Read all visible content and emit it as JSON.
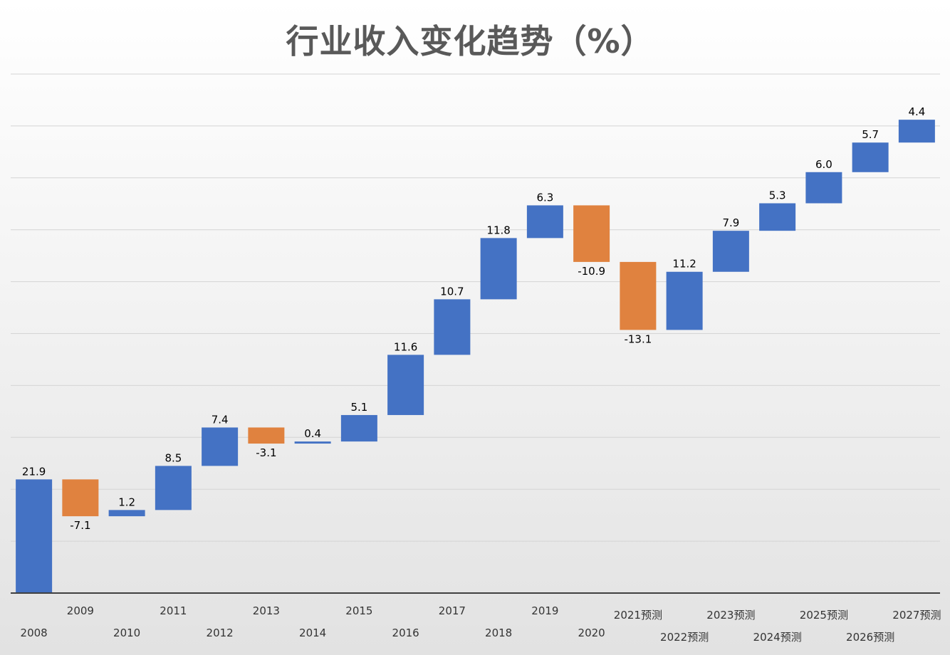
{
  "chart_data": {
    "type": "bar",
    "subtype": "waterfall",
    "title": "行业收入变化趋势（%）",
    "xlabel": "",
    "ylabel": "",
    "categories": [
      "2008",
      "2009",
      "2010",
      "2011",
      "2012",
      "2013",
      "2014",
      "2015",
      "2016",
      "2017",
      "2018",
      "2019",
      "2020",
      "2021预测",
      "2022预测",
      "2023预测",
      "2024预测",
      "2025预测",
      "2026预测",
      "2027预测"
    ],
    "values": [
      21.9,
      -7.1,
      1.2,
      8.5,
      7.4,
      -3.1,
      0.4,
      5.1,
      11.6,
      10.7,
      11.8,
      6.3,
      -10.9,
      -13.1,
      11.2,
      7.9,
      5.3,
      6.0,
      5.7,
      4.4
    ],
    "value_labels": [
      "21.9",
      "-7.1",
      "1.2",
      "8.5",
      "7.4",
      "-3.1",
      "0.4",
      "5.1",
      "11.6",
      "10.7",
      "11.8",
      "6.3",
      "-10.9",
      "-13.1",
      "11.2",
      "7.9",
      "5.3",
      "6.0",
      "5.7",
      "4.4"
    ],
    "ylim": [
      0,
      100
    ],
    "grid": true,
    "legend": "none",
    "colors": {
      "increase": "#4472C4",
      "decrease": "#E0823F",
      "gridline": "#d4d4d4",
      "axis": "#404040"
    }
  }
}
